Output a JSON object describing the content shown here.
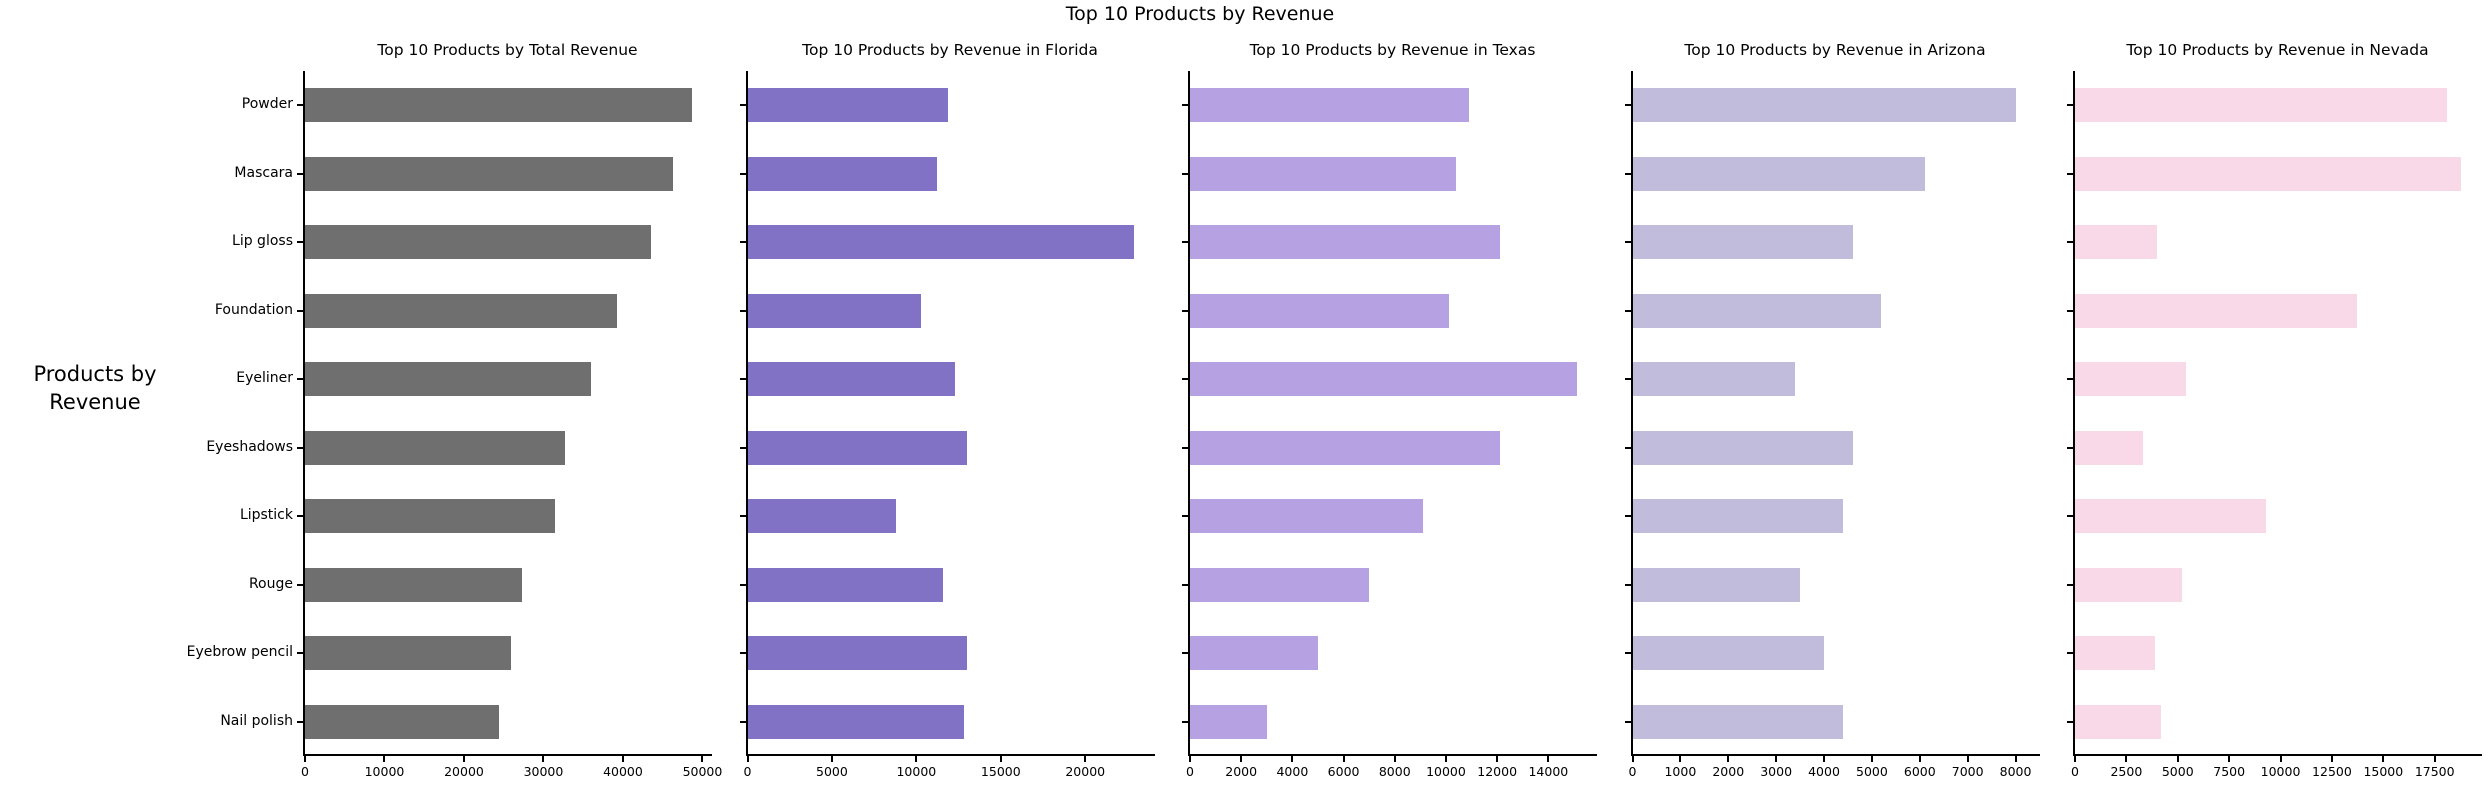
{
  "page_title": "Top 10 Products by Revenue",
  "ylabel_lines": [
    "Products by",
    "Revenue"
  ],
  "chart_data": {
    "type": "bar",
    "orientation": "horizontal",
    "title": "Top 10 Products by Revenue",
    "ylabel": "Products by Revenue",
    "grid": false,
    "legend": null,
    "categories": [
      "Powder",
      "Mascara",
      "Lip gloss",
      "Foundation",
      "Eyeliner",
      "Eyeshadows",
      "Lipstick",
      "Rouge",
      "Eyebrow pencil",
      "Nail polish"
    ],
    "charts": [
      {
        "title": "Top 10 Products by Total Revenue",
        "color": "#6f6f6f",
        "values": [
          48700,
          46300,
          43500,
          39300,
          36000,
          32700,
          31400,
          27300,
          25900,
          24400
        ],
        "xticks": [
          0,
          10000,
          20000,
          30000,
          40000,
          50000
        ],
        "xmax": 51200
      },
      {
        "title": "Top 10 Products by Revenue in Florida",
        "color": "#8172c5",
        "values": [
          11900,
          11200,
          22900,
          10300,
          12300,
          13000,
          8800,
          11600,
          13000,
          12800
        ],
        "xticks": [
          0,
          5000,
          10000,
          15000,
          20000
        ],
        "xmax": 24100
      },
      {
        "title": "Top 10 Products by Revenue in Texas",
        "color": "#b6a1e2",
        "values": [
          10900,
          10400,
          12100,
          10100,
          15100,
          12100,
          9100,
          7000,
          5000,
          3000
        ],
        "xticks": [
          0,
          2000,
          4000,
          6000,
          8000,
          10000,
          12000,
          14000
        ],
        "xmax": 15900
      },
      {
        "title": "Top 10 Products by Revenue in Arizona",
        "color": "#c2bcdc",
        "values": [
          8000,
          6100,
          4600,
          5200,
          3400,
          4600,
          4400,
          3500,
          4000,
          4400
        ],
        "xticks": [
          0,
          1000,
          2000,
          3000,
          4000,
          5000,
          6000,
          7000,
          8000
        ],
        "xmax": 8500
      },
      {
        "title": "Top 10 Products by Revenue in Nevada",
        "color": "#f9d9e7",
        "values": [
          18100,
          18800,
          4000,
          13700,
          5400,
          3300,
          9300,
          5200,
          3900,
          4200
        ],
        "xticks": [
          0,
          2500,
          5000,
          7500,
          10000,
          12500,
          15000,
          17500
        ],
        "xmax": 19800
      }
    ]
  }
}
